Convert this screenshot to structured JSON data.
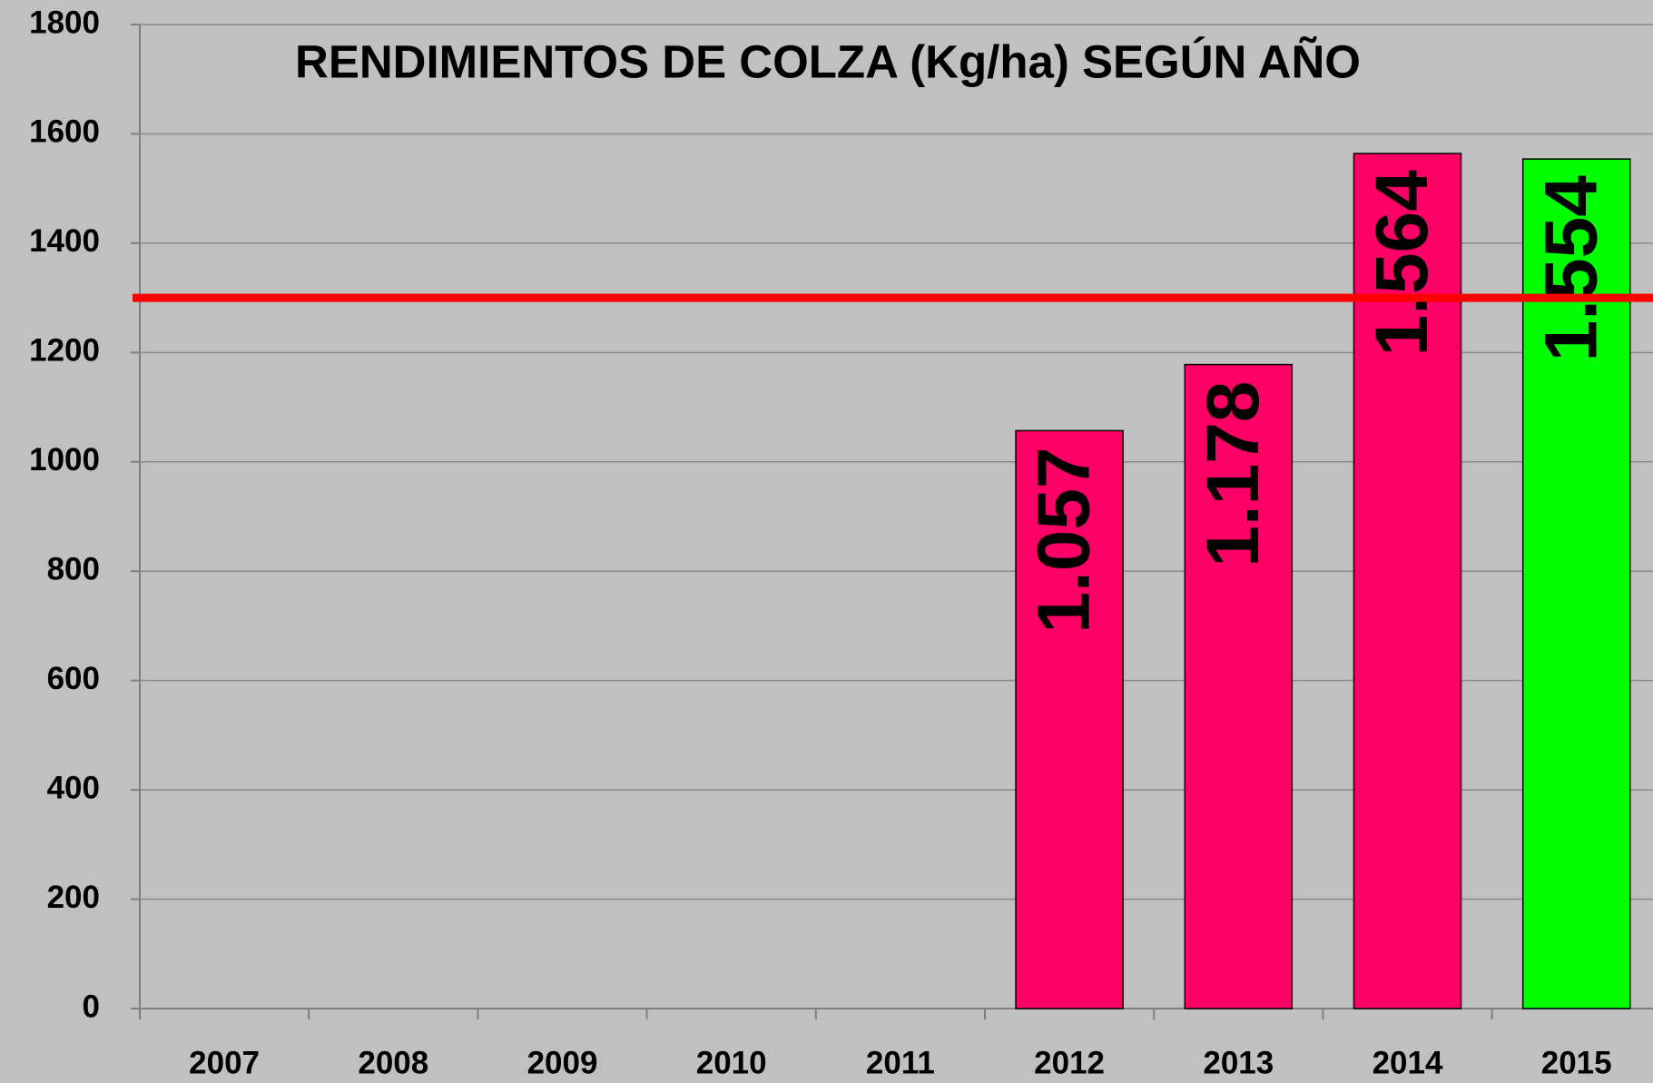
{
  "chart_data": {
    "type": "bar",
    "title": "RENDIMIENTOS DE COLZA (Kg/ha) SEGÚN AÑO",
    "categories": [
      "2007",
      "2008",
      "2009",
      "2010",
      "2011",
      "2012",
      "2013",
      "2014",
      "2015"
    ],
    "values": [
      null,
      null,
      null,
      null,
      null,
      1057,
      1178,
      1564,
      1554
    ],
    "value_labels": [
      null,
      null,
      null,
      null,
      null,
      "1.057",
      "1.178",
      "1.564",
      "1.554"
    ],
    "colors": [
      null,
      null,
      null,
      null,
      null,
      "#ff0066",
      "#ff0066",
      "#ff0066",
      "#00ff00"
    ],
    "ylim": [
      0,
      1800
    ],
    "yticks": [
      0,
      200,
      400,
      600,
      800,
      1000,
      1200,
      1400,
      1600,
      1800
    ],
    "grid": true,
    "reference_line": {
      "value": 1300,
      "color": "#ff0000"
    }
  }
}
